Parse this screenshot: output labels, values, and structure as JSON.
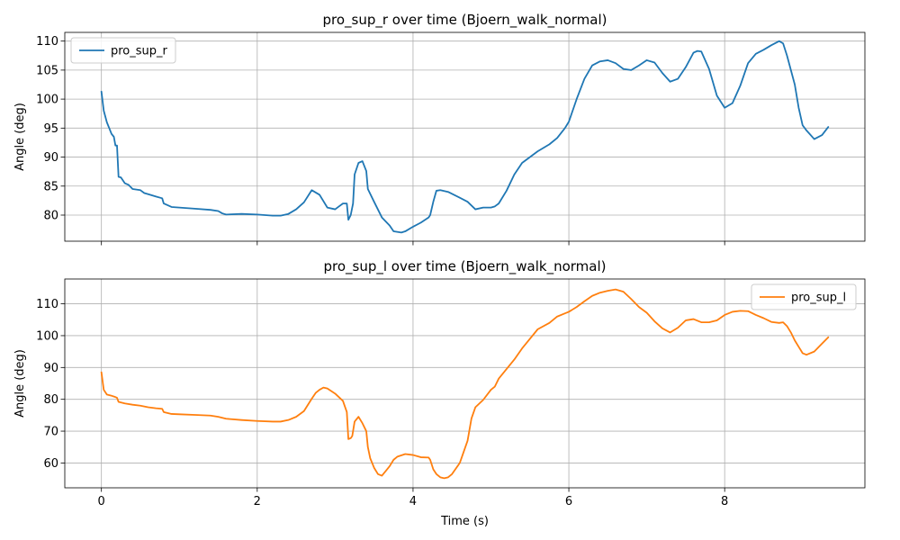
{
  "chart_data": [
    {
      "type": "line",
      "title": "pro_sup_r over time (Bjoern_walk_normal)",
      "xlabel": "",
      "ylabel": "Angle (deg)",
      "xlim": [
        -0.47,
        9.8
      ],
      "ylim": [
        75.5,
        111.5
      ],
      "xticks": [
        0,
        2,
        4,
        6,
        8
      ],
      "xtick_labels_visible": false,
      "yticks": [
        80,
        85,
        90,
        95,
        100,
        105,
        110
      ],
      "grid": true,
      "legend_position": "upper left",
      "series": [
        {
          "name": "pro_sup_r",
          "color": "#1f77b4",
          "x": [
            0.0,
            0.03,
            0.07,
            0.1,
            0.13,
            0.16,
            0.18,
            0.2,
            0.22,
            0.25,
            0.3,
            0.35,
            0.4,
            0.5,
            0.55,
            0.6,
            0.7,
            0.78,
            0.8,
            0.9,
            1.0,
            1.2,
            1.4,
            1.5,
            1.55,
            1.6,
            1.8,
            2.0,
            2.2,
            2.3,
            2.4,
            2.5,
            2.6,
            2.7,
            2.8,
            2.9,
            3.0,
            3.05,
            3.1,
            3.15,
            3.17,
            3.2,
            3.23,
            3.25,
            3.3,
            3.35,
            3.4,
            3.42,
            3.5,
            3.6,
            3.7,
            3.75,
            3.85,
            3.9,
            4.0,
            4.1,
            4.2,
            4.22,
            4.26,
            4.3,
            4.35,
            4.45,
            4.6,
            4.7,
            4.8,
            4.9,
            5.0,
            5.05,
            5.1,
            5.2,
            5.3,
            5.4,
            5.6,
            5.75,
            5.85,
            5.95,
            6.0,
            6.1,
            6.2,
            6.3,
            6.4,
            6.5,
            6.6,
            6.7,
            6.8,
            6.9,
            7.0,
            7.1,
            7.2,
            7.3,
            7.4,
            7.5,
            7.6,
            7.65,
            7.7,
            7.8,
            7.9,
            8.0,
            8.1,
            8.2,
            8.3,
            8.4,
            8.5,
            8.6,
            8.7,
            8.75,
            8.8,
            8.85,
            8.9,
            8.95,
            9.0,
            9.05,
            9.15,
            9.25,
            9.33
          ],
          "y": [
            101.3,
            98,
            96,
            95,
            94,
            93.5,
            92,
            92,
            86.6,
            86.5,
            85.5,
            85.2,
            84.5,
            84.3,
            83.8,
            83.6,
            83.2,
            82.9,
            82,
            81.4,
            81.3,
            81.1,
            80.9,
            80.7,
            80.3,
            80.1,
            80.2,
            80.1,
            79.9,
            79.9,
            80.2,
            81,
            82.2,
            84.3,
            83.5,
            81.3,
            81,
            81.5,
            82,
            82,
            79.2,
            80,
            82,
            87,
            89,
            89.3,
            87.6,
            84.5,
            82.3,
            79.6,
            78.2,
            77.2,
            77,
            77.2,
            78,
            78.7,
            79.6,
            80,
            82.3,
            84.2,
            84.3,
            84,
            83,
            82.3,
            81,
            81.3,
            81.3,
            81.5,
            82,
            84.2,
            87,
            89,
            91,
            92.2,
            93.3,
            95,
            96.1,
            100,
            103.5,
            105.8,
            106.5,
            106.7,
            106.2,
            105.2,
            105,
            105.8,
            106.7,
            106.3,
            104.5,
            103,
            103.5,
            105.5,
            108,
            108.3,
            108.2,
            105.2,
            100.6,
            98.5,
            99.3,
            102.3,
            106.2,
            107.8,
            108.5,
            109.3,
            110,
            109.6,
            107.5,
            105,
            102.5,
            98.5,
            95.5,
            94.6,
            93.1,
            93.8,
            95.2
          ]
        }
      ]
    },
    {
      "type": "line",
      "title": "pro_sup_l over time (Bjoern_walk_normal)",
      "xlabel": "Time (s)",
      "ylabel": "Angle (deg)",
      "xlim": [
        -0.47,
        9.8
      ],
      "ylim": [
        52.2,
        117.8
      ],
      "xticks": [
        0,
        2,
        4,
        6,
        8
      ],
      "xtick_labels_visible": true,
      "yticks": [
        60,
        70,
        80,
        90,
        100,
        110
      ],
      "grid": true,
      "legend_position": "upper right",
      "series": [
        {
          "name": "pro_sup_l",
          "color": "#ff7f0e",
          "x": [
            0.0,
            0.03,
            0.07,
            0.12,
            0.17,
            0.2,
            0.22,
            0.3,
            0.4,
            0.5,
            0.6,
            0.7,
            0.78,
            0.8,
            0.9,
            1.0,
            1.2,
            1.4,
            1.5,
            1.6,
            1.8,
            2.0,
            2.2,
            2.3,
            2.4,
            2.5,
            2.6,
            2.7,
            2.75,
            2.8,
            2.85,
            2.9,
            3.0,
            3.1,
            3.15,
            3.17,
            3.2,
            3.22,
            3.25,
            3.3,
            3.35,
            3.4,
            3.42,
            3.45,
            3.5,
            3.55,
            3.6,
            3.65,
            3.7,
            3.75,
            3.8,
            3.9,
            4.0,
            4.1,
            4.2,
            4.22,
            4.26,
            4.3,
            4.35,
            4.4,
            4.45,
            4.5,
            4.6,
            4.65,
            4.7,
            4.75,
            4.8,
            4.9,
            5.0,
            5.05,
            5.1,
            5.2,
            5.3,
            5.4,
            5.6,
            5.75,
            5.85,
            5.95,
            6.0,
            6.1,
            6.2,
            6.3,
            6.4,
            6.5,
            6.6,
            6.7,
            6.8,
            6.9,
            7.0,
            7.1,
            7.2,
            7.3,
            7.4,
            7.5,
            7.6,
            7.7,
            7.8,
            7.9,
            8.0,
            8.1,
            8.2,
            8.3,
            8.4,
            8.5,
            8.6,
            8.7,
            8.75,
            8.8,
            8.85,
            8.9,
            8.95,
            9.0,
            9.05,
            9.15,
            9.25,
            9.33
          ],
          "y": [
            88.5,
            83,
            81.5,
            81.2,
            80.8,
            80.5,
            79.2,
            78.7,
            78.3,
            78,
            77.5,
            77.2,
            77,
            76,
            75.4,
            75.3,
            75.1,
            74.9,
            74.5,
            73.9,
            73.5,
            73.2,
            73,
            73,
            73.5,
            74.5,
            76.3,
            80.2,
            82,
            83,
            83.7,
            83.4,
            81.8,
            79.5,
            76,
            67.5,
            67.8,
            68.5,
            73,
            74.5,
            72.5,
            70,
            65,
            61.5,
            58.5,
            56.5,
            56,
            57.5,
            59,
            61,
            62,
            62.8,
            62.5,
            61.8,
            61.7,
            61,
            58,
            56.5,
            55.5,
            55.2,
            55.5,
            56.5,
            60,
            63.5,
            67,
            74,
            77.5,
            79.8,
            83,
            84,
            86.5,
            89.5,
            92.5,
            96,
            102,
            104,
            106,
            107,
            107.5,
            109,
            110.8,
            112.5,
            113.5,
            114.1,
            114.5,
            113.8,
            111.5,
            109,
            107.2,
            104.5,
            102.3,
            101,
            102.5,
            104.8,
            105.2,
            104.2,
            104.2,
            104.8,
            106.5,
            107.5,
            107.8,
            107.7,
            106.5,
            105.5,
            104.3,
            104,
            104.2,
            103,
            101,
            98.5,
            96.5,
            94.5,
            94,
            95,
            97.5,
            99.5
          ]
        }
      ]
    }
  ]
}
